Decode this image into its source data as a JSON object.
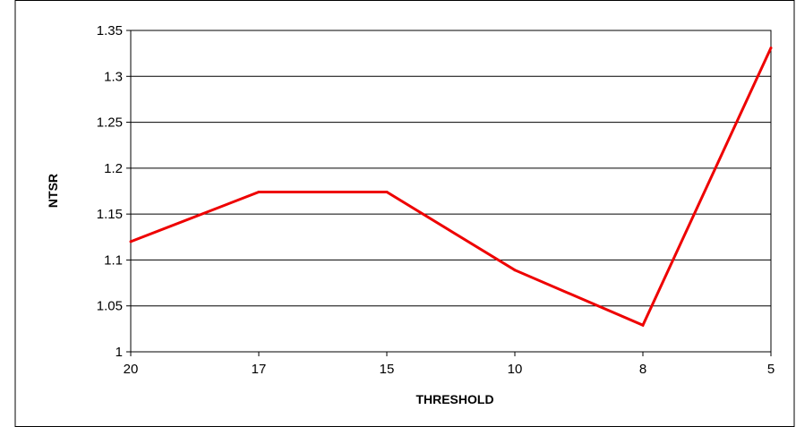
{
  "chart_data": {
    "type": "line",
    "title": "",
    "xlabel": "THRESHOLD",
    "ylabel": "NTSR",
    "categories": [
      "20",
      "17",
      "15",
      "10",
      "8",
      "5"
    ],
    "series": [
      {
        "values": [
          1.12,
          1.174,
          1.174,
          1.089,
          1.029,
          1.331
        ],
        "color": "#ee0000"
      }
    ],
    "ylim": [
      1,
      1.35
    ],
    "yticks": [
      "1",
      "1.05",
      "1.1",
      "1.15",
      "1.2",
      "1.25",
      "1.3",
      "1.35"
    ],
    "grid": "horizontal",
    "legend": "none"
  }
}
